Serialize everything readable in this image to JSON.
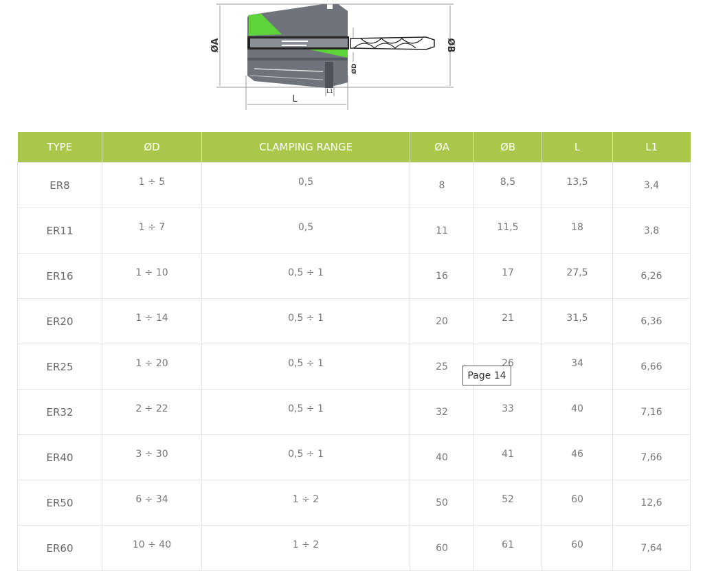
{
  "diagram": {
    "labels": {
      "a": "ØA",
      "b": "ØB",
      "d": "ØD",
      "l": "L",
      "l1": "L1"
    },
    "accent_color": "#5fd43a"
  },
  "table": {
    "header_color": "#a9c84b",
    "headers": [
      "TYPE",
      "ØD",
      "CLAMPING RANGE",
      "ØA",
      "ØB",
      "L",
      "L1"
    ],
    "rows": [
      [
        "ER8",
        "1 ÷ 5",
        "0,5",
        "8",
        "8,5",
        "13,5",
        "3,4"
      ],
      [
        "ER11",
        "1 ÷ 7",
        "0,5",
        "11",
        "11,5",
        "18",
        "3,8"
      ],
      [
        "ER16",
        "1 ÷ 10",
        "0,5 ÷ 1",
        "16",
        "17",
        "27,5",
        "6,26"
      ],
      [
        "ER20",
        "1 ÷ 14",
        "0,5 ÷ 1",
        "20",
        "21",
        "31,5",
        "6,36"
      ],
      [
        "ER25",
        "1 ÷ 20",
        "0,5 ÷ 1",
        "25",
        "26",
        "34",
        "6,66"
      ],
      [
        "ER32",
        "2 ÷ 22",
        "0,5 ÷ 1",
        "32",
        "33",
        "40",
        "7,16"
      ],
      [
        "ER40",
        "3 ÷ 30",
        "0,5 ÷ 1",
        "40",
        "41",
        "46",
        "7,66"
      ],
      [
        "ER50",
        "6 ÷ 34",
        "1 ÷ 2",
        "50",
        "52",
        "60",
        "12,6"
      ],
      [
        "ER60",
        "10 ÷ 40",
        "1 ÷ 2",
        "60",
        "61",
        "60",
        "7,64"
      ]
    ]
  },
  "tooltip": {
    "text": "Page 14"
  }
}
